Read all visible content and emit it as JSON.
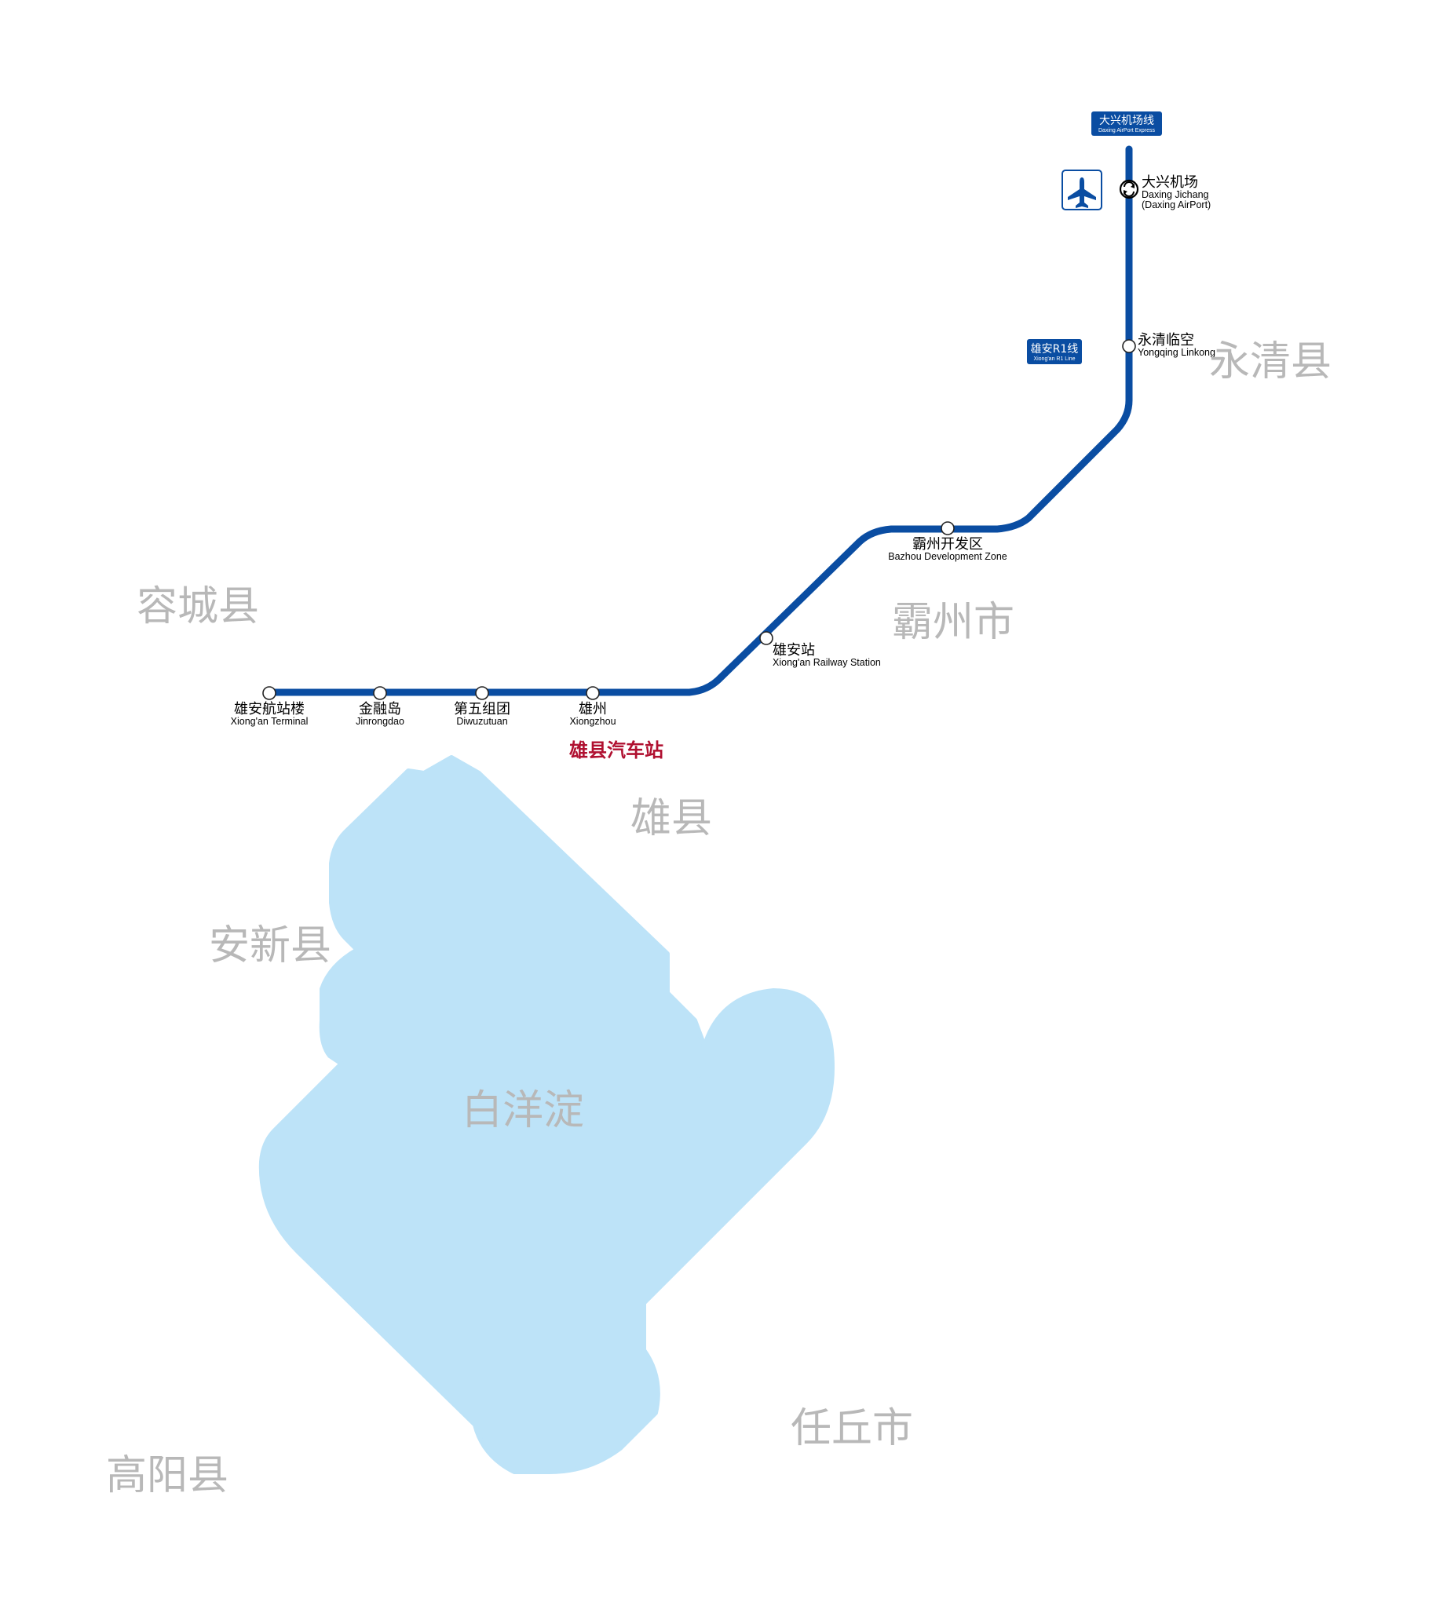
{
  "colors": {
    "line": "#0a4da2",
    "lake": "#bde3f8",
    "region_text": "#b8b8b8",
    "bus_station": "#b01030"
  },
  "badges": {
    "airport_express": {
      "cn": "大兴机场线",
      "en": "Daxing AirPort Express"
    },
    "r1_line": {
      "cn": "雄安R1线",
      "en": "Xiong'an R1 Line"
    }
  },
  "stations": {
    "daxing_airport": {
      "cn": "大兴机场",
      "en": "Daxing Jichang",
      "en2": "(Daxing AirPort)"
    },
    "yongqing": {
      "cn": "永清临空",
      "en": "Yongqing Linkong"
    },
    "bazhou": {
      "cn": "霸州开发区",
      "en": "Bazhou Development Zone"
    },
    "xiongan_rail": {
      "cn": "雄安站",
      "en": "Xiong'an Railway Station"
    },
    "xiongzhou": {
      "cn": "雄州",
      "en": "Xiongzhou"
    },
    "diwuzutuan": {
      "cn": "第五组团",
      "en": "Diwuzutuan"
    },
    "jinrongdao": {
      "cn": "金融岛",
      "en": "Jinrongdao"
    },
    "terminal": {
      "cn": "雄安航站楼",
      "en": "Xiong'an Terminal"
    }
  },
  "bus_station": "雄县汽车站",
  "regions": {
    "yongqing": "永清县",
    "bazhou": "霸州市",
    "rongcheng": "容城县",
    "xiongxian": "雄县",
    "anxin": "安新县",
    "baiyangdian": "白洋淀",
    "renqiu": "任丘市",
    "gaoyang": "高阳县"
  },
  "icons": {
    "airport": "airplane-icon",
    "interchange": "interchange-icon"
  }
}
